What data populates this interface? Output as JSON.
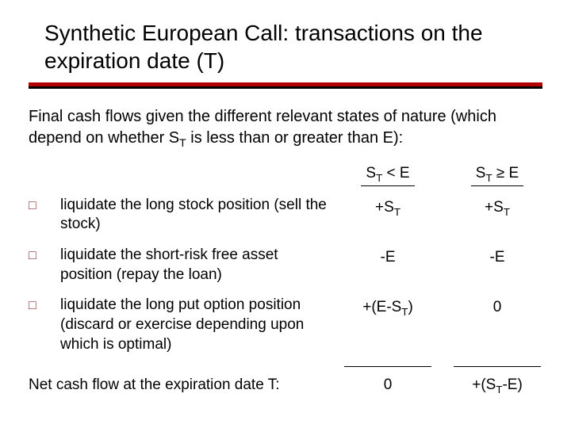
{
  "title": "Synthetic European Call: transactions on the expiration date (T)",
  "intro_a": "Final cash flows given the different relevant states of nature (which depend on whether S",
  "intro_sub": "T",
  "intro_b": " is less than or greater than E):",
  "col1_a": "S",
  "col1_sub": "T",
  "col1_b": " < E",
  "col2_a": "S",
  "col2_sub": "T",
  "col2_b": " ≥ E",
  "row1": {
    "text": "liquidate the long stock position (sell the stock)",
    "v1_a": "+S",
    "v1_sub": "T",
    "v2_a": "+S",
    "v2_sub": "T"
  },
  "row2": {
    "text": "liquidate the short-risk free asset position (repay the loan)",
    "v1": "-E",
    "v2": "-E"
  },
  "row3": {
    "text": "liquidate the long put option position (discard or exercise depending upon which is optimal)",
    "v1_a": "+(E-S",
    "v1_sub": "T",
    "v1_b": ")",
    "v2": "0"
  },
  "net": {
    "label": "Net cash flow at the expiration date T:",
    "v1": "0",
    "v2_a": "+(S",
    "v2_sub": "T",
    "v2_b": "-E)"
  },
  "bullet_glyph": "□",
  "colors": {
    "rule_red": "#b40000",
    "bullet": "#8a3030"
  }
}
